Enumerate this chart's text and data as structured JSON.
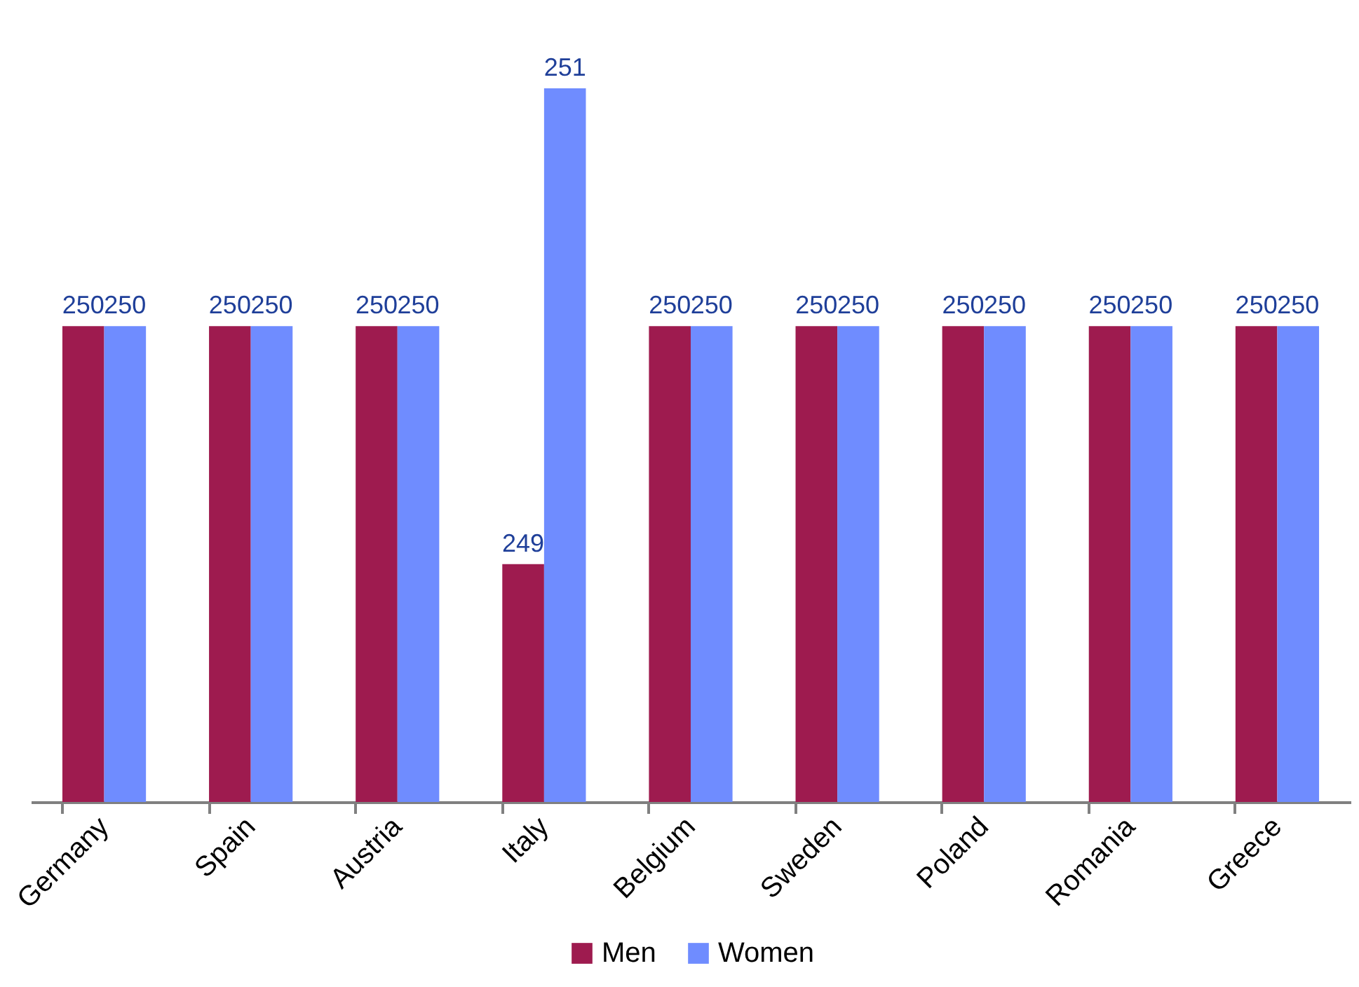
{
  "chart_data": {
    "type": "bar",
    "categories": [
      "Germany",
      "Spain",
      "Austria",
      "Italy",
      "Belgium",
      "Sweden",
      "Poland",
      "Romania",
      "Greece"
    ],
    "series": [
      {
        "name": "Men",
        "color": "#9e1b4f",
        "values": [
          250,
          250,
          250,
          249,
          250,
          250,
          250,
          250,
          250
        ]
      },
      {
        "name": "Women",
        "color": "#6f8cff",
        "values": [
          250,
          250,
          250,
          251,
          250,
          250,
          250,
          250,
          250
        ]
      }
    ],
    "ylim": [
      248,
      251
    ],
    "tick_labels": "x",
    "data_labels": true,
    "legend": "bottom"
  }
}
